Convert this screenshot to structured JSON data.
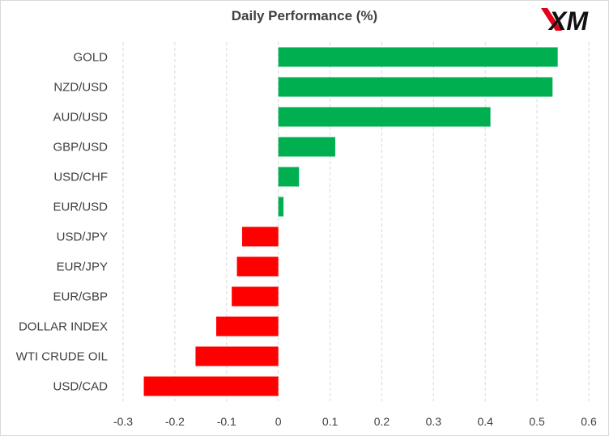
{
  "logo": {
    "text": "XM"
  },
  "chart_data": {
    "type": "bar",
    "orientation": "horizontal",
    "title": "Daily Performance  (%)",
    "xlabel": "",
    "ylabel": "",
    "categories": [
      "GOLD",
      "NZD/USD",
      "AUD/USD",
      "GBP/USD",
      "USD/CHF",
      "EUR/USD",
      "USD/JPY",
      "EUR/JPY",
      "EUR/GBP",
      "DOLLAR INDEX",
      "WTI CRUDE OIL",
      "USD/CAD"
    ],
    "values": [
      0.54,
      0.53,
      0.41,
      0.11,
      0.04,
      0.01,
      -0.07,
      -0.08,
      -0.09,
      -0.12,
      -0.16,
      -0.26
    ],
    "xlim": [
      -0.3,
      0.6
    ],
    "xticks": [
      "-0.3",
      "-0.2",
      "-0.1",
      "0",
      "0.1",
      "0.2",
      "0.3",
      "0.4",
      "0.5",
      "0.6"
    ],
    "grid": "vertical dashed",
    "legend": "none",
    "colors": {
      "positive": "#00b050",
      "negative": "#ff0000",
      "grid": "#d9d9d9",
      "text": "#404040"
    }
  }
}
